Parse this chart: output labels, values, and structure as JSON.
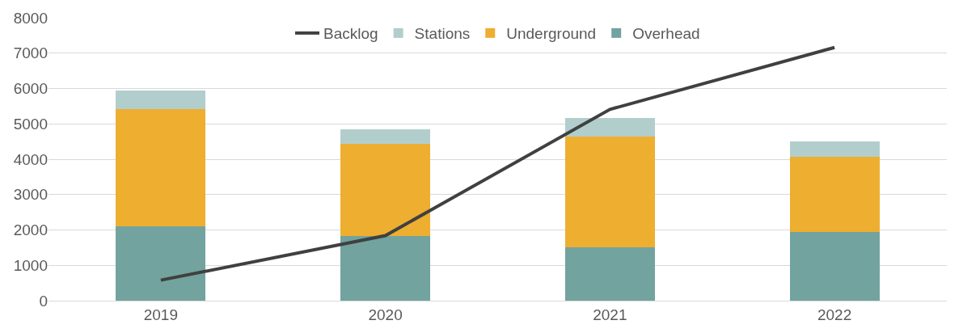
{
  "chart_data": {
    "type": "bar",
    "stacked": true,
    "categories": [
      "2019",
      "2020",
      "2021",
      "2022"
    ],
    "series": [
      {
        "name": "Overhead",
        "color": "#72a39e",
        "values": [
          2100,
          1820,
          1510,
          1940
        ]
      },
      {
        "name": "Underground",
        "color": "#eeae30",
        "values": [
          3310,
          2610,
          3130,
          2120
        ]
      },
      {
        "name": "Stations",
        "color": "#b1cecd",
        "values": [
          540,
          420,
          530,
          440
        ]
      },
      {
        "name": "Backlog",
        "color": "#404040",
        "type": "line",
        "values": [
          580,
          1840,
          5410,
          7160
        ]
      }
    ],
    "ylim": [
      0,
      8000
    ],
    "yticks": [
      0,
      1000,
      2000,
      3000,
      4000,
      5000,
      6000,
      7000,
      8000
    ],
    "grid": "y",
    "legend": "top"
  }
}
